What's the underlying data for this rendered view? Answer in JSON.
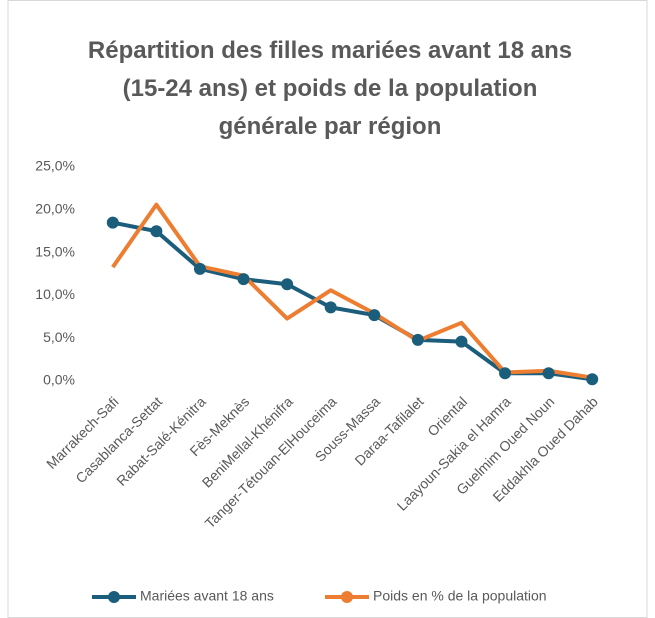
{
  "chart_data": {
    "type": "line",
    "title": "Répartition des filles mariées avant 18 ans (15-24 ans) et poids de la population générale par région",
    "categories": [
      "Marrakech-Safi",
      "Casablanca-Settat",
      "Rabat-Salé-Kénitra",
      "Fès-Meknès",
      "BeniMellal-Khénifra",
      "Tanger-Tétouan-ElHouceima",
      "Souss-Massa",
      "Daraa-Tafilalet",
      "Oriental",
      "Laayoun-Sakia el Hamra",
      "Guelmim Oued Noun",
      "Eddakhla Oued Dahab"
    ],
    "series": [
      {
        "name": "Mariées avant 18 ans",
        "color": "#1b5e7b",
        "marker": true,
        "values": [
          18.5,
          17.5,
          13.1,
          11.9,
          11.3,
          8.6,
          7.7,
          4.8,
          4.6,
          0.9,
          0.9,
          0.2
        ]
      },
      {
        "name": "Poids en % de la population",
        "color": "#ed7d31",
        "marker": false,
        "values": [
          13.3,
          20.6,
          13.4,
          12.3,
          7.3,
          10.6,
          7.9,
          4.7,
          6.8,
          1.0,
          1.2,
          0.4
        ]
      }
    ],
    "ylim": [
      0,
      25
    ],
    "yticks": [
      {
        "value": 0,
        "label": "0,0%"
      },
      {
        "value": 5,
        "label": "5,0%"
      },
      {
        "value": 10,
        "label": "10,0%"
      },
      {
        "value": 15,
        "label": "15,0%"
      },
      {
        "value": 20,
        "label": "20,0%"
      },
      {
        "value": 25,
        "label": "25,0%"
      }
    ],
    "grid": false,
    "legend": "bottom"
  }
}
